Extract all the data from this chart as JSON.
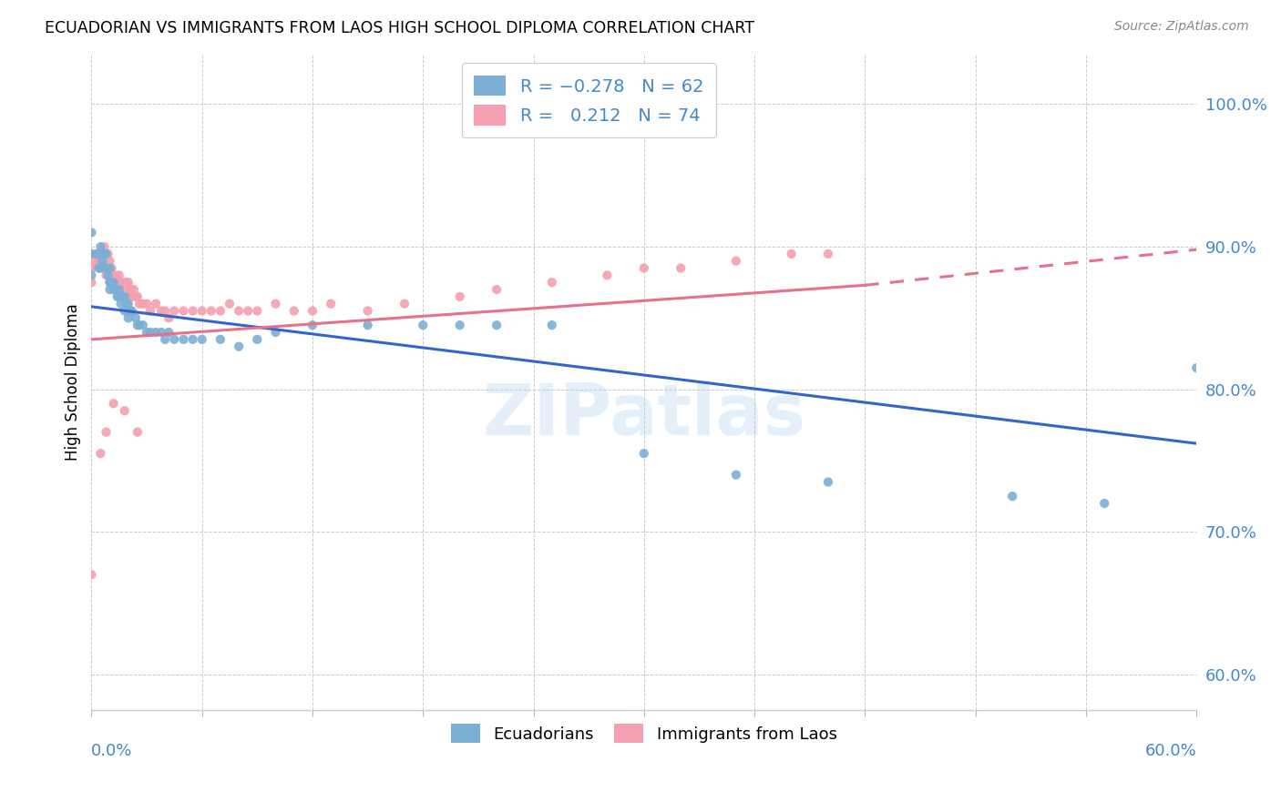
{
  "title": "ECUADORIAN VS IMMIGRANTS FROM LAOS HIGH SCHOOL DIPLOMA CORRELATION CHART",
  "source": "Source: ZipAtlas.com",
  "ylabel": "High School Diploma",
  "ytick_labels": [
    "60.0%",
    "70.0%",
    "80.0%",
    "90.0%",
    "100.0%"
  ],
  "ytick_values": [
    0.6,
    0.7,
    0.8,
    0.9,
    1.0
  ],
  "xlim": [
    0.0,
    0.6
  ],
  "ylim": [
    0.575,
    1.035
  ],
  "blue_color": "#7BAFD4",
  "pink_color": "#F4A0B0",
  "blue_line_color": "#3366CC",
  "pink_line_color": "#E8708A",
  "watermark": "ZIPatlas",
  "blue_line": [
    0.0,
    0.858,
    0.6,
    0.762
  ],
  "pink_line_solid": [
    0.0,
    0.835,
    0.42,
    0.873
  ],
  "pink_line_dashed": [
    0.42,
    0.873,
    0.6,
    0.898
  ],
  "blue_scatter_x": [
    0.0,
    0.0,
    0.0,
    0.003,
    0.004,
    0.005,
    0.005,
    0.006,
    0.007,
    0.007,
    0.008,
    0.008,
    0.009,
    0.01,
    0.01,
    0.01,
    0.011,
    0.012,
    0.012,
    0.013,
    0.014,
    0.015,
    0.015,
    0.016,
    0.017,
    0.018,
    0.018,
    0.019,
    0.02,
    0.02,
    0.021,
    0.022,
    0.024,
    0.025,
    0.026,
    0.028,
    0.03,
    0.032,
    0.035,
    0.038,
    0.04,
    0.042,
    0.045,
    0.05,
    0.055,
    0.06,
    0.07,
    0.08,
    0.09,
    0.1,
    0.12,
    0.15,
    0.18,
    0.2,
    0.22,
    0.25,
    0.3,
    0.35,
    0.4,
    0.5,
    0.55,
    0.6
  ],
  "blue_scatter_y": [
    0.91,
    0.895,
    0.88,
    0.895,
    0.885,
    0.9,
    0.885,
    0.89,
    0.895,
    0.885,
    0.895,
    0.885,
    0.88,
    0.885,
    0.875,
    0.87,
    0.875,
    0.875,
    0.87,
    0.87,
    0.865,
    0.87,
    0.865,
    0.86,
    0.865,
    0.865,
    0.855,
    0.86,
    0.86,
    0.85,
    0.855,
    0.855,
    0.85,
    0.845,
    0.845,
    0.845,
    0.84,
    0.84,
    0.84,
    0.84,
    0.835,
    0.84,
    0.835,
    0.835,
    0.835,
    0.835,
    0.835,
    0.83,
    0.835,
    0.84,
    0.845,
    0.845,
    0.845,
    0.845,
    0.845,
    0.845,
    0.755,
    0.74,
    0.735,
    0.725,
    0.72,
    0.815
  ],
  "pink_scatter_x": [
    0.0,
    0.0,
    0.0,
    0.002,
    0.003,
    0.004,
    0.005,
    0.005,
    0.006,
    0.007,
    0.007,
    0.008,
    0.008,
    0.009,
    0.009,
    0.01,
    0.01,
    0.011,
    0.012,
    0.012,
    0.013,
    0.014,
    0.015,
    0.015,
    0.016,
    0.017,
    0.018,
    0.019,
    0.02,
    0.02,
    0.021,
    0.022,
    0.023,
    0.024,
    0.025,
    0.026,
    0.028,
    0.03,
    0.032,
    0.035,
    0.038,
    0.04,
    0.042,
    0.045,
    0.05,
    0.055,
    0.06,
    0.065,
    0.07,
    0.075,
    0.08,
    0.085,
    0.09,
    0.1,
    0.11,
    0.12,
    0.13,
    0.15,
    0.17,
    0.2,
    0.22,
    0.25,
    0.28,
    0.3,
    0.32,
    0.35,
    0.38,
    0.4,
    0.0,
    0.005,
    0.008,
    0.012,
    0.018,
    0.025
  ],
  "pink_scatter_y": [
    0.895,
    0.885,
    0.875,
    0.89,
    0.895,
    0.89,
    0.895,
    0.885,
    0.89,
    0.9,
    0.885,
    0.895,
    0.88,
    0.895,
    0.88,
    0.89,
    0.875,
    0.885,
    0.88,
    0.875,
    0.88,
    0.875,
    0.88,
    0.87,
    0.875,
    0.875,
    0.87,
    0.875,
    0.875,
    0.865,
    0.87,
    0.865,
    0.87,
    0.865,
    0.865,
    0.86,
    0.86,
    0.86,
    0.855,
    0.86,
    0.855,
    0.855,
    0.85,
    0.855,
    0.855,
    0.855,
    0.855,
    0.855,
    0.855,
    0.86,
    0.855,
    0.855,
    0.855,
    0.86,
    0.855,
    0.855,
    0.86,
    0.855,
    0.86,
    0.865,
    0.87,
    0.875,
    0.88,
    0.885,
    0.885,
    0.89,
    0.895,
    0.895,
    0.67,
    0.755,
    0.77,
    0.79,
    0.785,
    0.77
  ]
}
